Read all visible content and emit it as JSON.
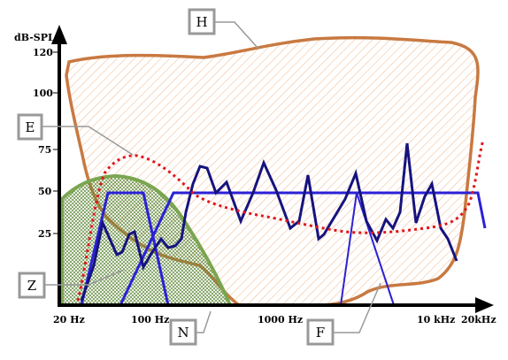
{
  "axis": {
    "y_label": "dB-SPL",
    "y_ticks": [
      "25",
      "50",
      "75",
      "100",
      "120"
    ],
    "x_ticks": [
      "20 Hz",
      "100 Hz",
      "1000 Hz",
      "10 kHz",
      "20kHz"
    ]
  },
  "callouts": {
    "h": "H",
    "e": "E",
    "z": "Z",
    "n": "N",
    "f": "F"
  },
  "colors": {
    "h_region": "#c87941",
    "e_curve": "#e0161c",
    "z_region": "#7aa650",
    "n_line": "#2b21d6",
    "f_line": "#16137e",
    "callout_border": "#999999"
  }
}
